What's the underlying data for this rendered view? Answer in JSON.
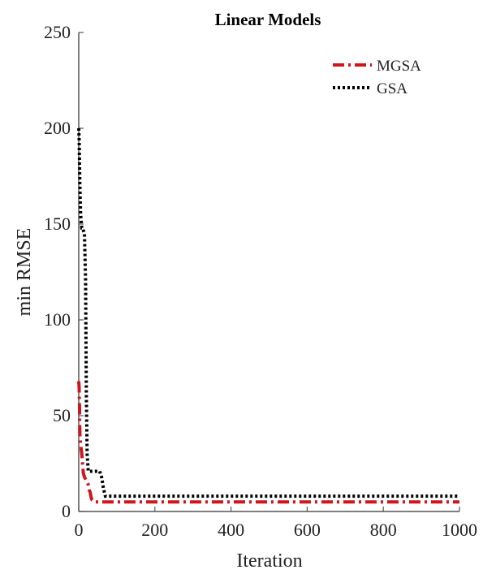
{
  "chart_data": {
    "type": "line",
    "title": "Linear Models",
    "xlabel": "Iteration",
    "ylabel": "min RMSE",
    "xlim": [
      0,
      1000
    ],
    "ylim": [
      0,
      250
    ],
    "xticks": [
      0,
      200,
      400,
      600,
      800,
      1000
    ],
    "yticks": [
      0,
      50,
      100,
      150,
      200,
      250
    ],
    "grid": false,
    "legend_position": "top-right",
    "series": [
      {
        "name": "MGSA",
        "color": "#d0161c",
        "line_style": "dash-dot",
        "x": [
          0,
          1,
          2,
          3,
          5,
          8,
          10,
          12,
          15,
          20,
          25,
          28,
          30,
          33,
          35,
          40,
          1000
        ],
        "y": [
          68,
          65,
          55,
          40,
          35,
          30,
          25,
          20,
          18,
          16,
          14,
          11,
          10,
          7,
          6,
          5,
          5
        ]
      },
      {
        "name": "GSA",
        "color": "#000000",
        "line_style": "dotted",
        "x": [
          0,
          1,
          3,
          5,
          8,
          10,
          15,
          18,
          20,
          22,
          25,
          30,
          40,
          50,
          55,
          60,
          65,
          70,
          80,
          100,
          1000
        ],
        "y": [
          200,
          195,
          170,
          155,
          148,
          148,
          145,
          120,
          60,
          30,
          21,
          21,
          21,
          21,
          21,
          18,
          12,
          8,
          8,
          8,
          8
        ]
      }
    ]
  }
}
